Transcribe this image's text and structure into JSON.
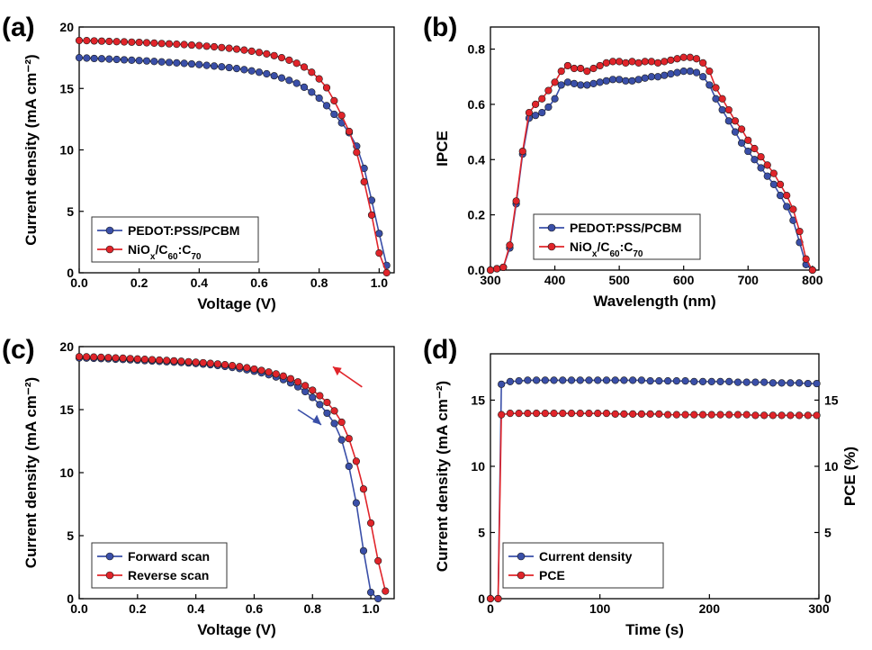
{
  "chart_data": [
    {
      "panel": "(a)",
      "type": "line",
      "xlabel": "Voltage (V)",
      "ylabel": "Current density (mA cm⁻²)",
      "xlim": [
        0,
        1.05
      ],
      "ylim": [
        0,
        20
      ],
      "xticks": [
        0.0,
        0.2,
        0.4,
        0.6,
        0.8,
        1.0
      ],
      "xtick_labels": [
        "0.0",
        "0.2",
        "0.4",
        "0.6",
        "0.8",
        "1.0"
      ],
      "yticks": [
        0,
        5,
        10,
        15,
        20
      ],
      "ytick_labels": [
        "0",
        "5",
        "10",
        "15",
        "20"
      ],
      "legend": {
        "position": "bottom-left",
        "entries": [
          "PEDOT:PSS/PCBM",
          "NiOx/C60:C70"
        ]
      },
      "series": [
        {
          "name": "PEDOT:PSS/PCBM",
          "color": "#3a4fa8",
          "x": [
            0.0,
            0.025,
            0.05,
            0.075,
            0.1,
            0.125,
            0.15,
            0.175,
            0.2,
            0.225,
            0.25,
            0.275,
            0.3,
            0.325,
            0.35,
            0.375,
            0.4,
            0.425,
            0.45,
            0.475,
            0.5,
            0.525,
            0.55,
            0.575,
            0.6,
            0.625,
            0.65,
            0.675,
            0.7,
            0.725,
            0.75,
            0.775,
            0.8,
            0.825,
            0.85,
            0.875,
            0.9,
            0.925,
            0.95,
            0.975,
            1.0,
            1.025
          ],
          "y": [
            17.5,
            17.47,
            17.44,
            17.42,
            17.39,
            17.36,
            17.33,
            17.3,
            17.27,
            17.24,
            17.2,
            17.16,
            17.12,
            17.08,
            17.04,
            16.99,
            16.94,
            16.88,
            16.82,
            16.76,
            16.7,
            16.62,
            16.53,
            16.43,
            16.32,
            16.19,
            16.03,
            15.85,
            15.66,
            15.42,
            15.1,
            14.7,
            14.21,
            13.6,
            12.9,
            12.2,
            11.4,
            10.3,
            8.5,
            5.9,
            3.2,
            0.6
          ]
        },
        {
          "name": "NiOx/C60:C70",
          "color": "#e0242a",
          "x": [
            0.0,
            0.025,
            0.05,
            0.075,
            0.1,
            0.125,
            0.15,
            0.175,
            0.2,
            0.225,
            0.25,
            0.275,
            0.3,
            0.325,
            0.35,
            0.375,
            0.4,
            0.425,
            0.45,
            0.475,
            0.5,
            0.525,
            0.55,
            0.575,
            0.6,
            0.625,
            0.65,
            0.675,
            0.7,
            0.725,
            0.75,
            0.775,
            0.8,
            0.825,
            0.85,
            0.875,
            0.9,
            0.925,
            0.95,
            0.975,
            1.0,
            1.025
          ],
          "y": [
            18.9,
            18.89,
            18.87,
            18.85,
            18.83,
            18.81,
            18.79,
            18.77,
            18.75,
            18.72,
            18.69,
            18.66,
            18.63,
            18.6,
            18.57,
            18.53,
            18.49,
            18.44,
            18.39,
            18.33,
            18.27,
            18.2,
            18.12,
            18.03,
            17.93,
            17.81,
            17.67,
            17.5,
            17.3,
            17.05,
            16.74,
            16.32,
            15.78,
            15.06,
            14.0,
            12.8,
            11.5,
            9.8,
            7.4,
            4.7,
            1.6,
            0.0
          ]
        }
      ]
    },
    {
      "panel": "(b)",
      "type": "line",
      "xlabel": "Wavelength (nm)",
      "ylabel": "IPCE",
      "xlim": [
        300,
        810
      ],
      "ylim": [
        0,
        0.88
      ],
      "xticks": [
        300,
        400,
        500,
        600,
        700,
        800
      ],
      "xtick_labels": [
        "300",
        "400",
        "500",
        "600",
        "700",
        "800"
      ],
      "yticks": [
        0.0,
        0.2,
        0.4,
        0.6,
        0.8
      ],
      "ytick_labels": [
        "0.0",
        "0.2",
        "0.4",
        "0.6",
        "0.8"
      ],
      "legend": {
        "position": "bottom-center",
        "entries": [
          "PEDOT:PSS/PCBM",
          "NiOx/C60:C70"
        ]
      },
      "series": [
        {
          "name": "PEDOT:PSS/PCBM",
          "color": "#3a4fa8",
          "x": [
            300,
            310,
            320,
            330,
            340,
            350,
            360,
            370,
            380,
            390,
            400,
            410,
            420,
            430,
            440,
            450,
            460,
            470,
            480,
            490,
            500,
            510,
            520,
            530,
            540,
            550,
            560,
            570,
            580,
            590,
            600,
            610,
            620,
            630,
            640,
            650,
            660,
            670,
            680,
            690,
            700,
            710,
            720,
            730,
            740,
            750,
            760,
            770,
            780,
            790,
            800
          ],
          "y": [
            0.0,
            0.005,
            0.01,
            0.08,
            0.24,
            0.42,
            0.55,
            0.56,
            0.57,
            0.59,
            0.62,
            0.67,
            0.68,
            0.675,
            0.67,
            0.67,
            0.675,
            0.68,
            0.685,
            0.69,
            0.69,
            0.685,
            0.685,
            0.69,
            0.695,
            0.7,
            0.7,
            0.705,
            0.71,
            0.715,
            0.72,
            0.72,
            0.715,
            0.7,
            0.67,
            0.62,
            0.58,
            0.54,
            0.5,
            0.46,
            0.43,
            0.4,
            0.37,
            0.34,
            0.31,
            0.27,
            0.23,
            0.18,
            0.1,
            0.02,
            0.0
          ]
        },
        {
          "name": "NiOx/C60:C70",
          "color": "#e0242a",
          "x": [
            300,
            310,
            320,
            330,
            340,
            350,
            360,
            370,
            380,
            390,
            400,
            410,
            420,
            430,
            440,
            450,
            460,
            470,
            480,
            490,
            500,
            510,
            520,
            530,
            540,
            550,
            560,
            570,
            580,
            590,
            600,
            610,
            620,
            630,
            640,
            650,
            660,
            670,
            680,
            690,
            700,
            710,
            720,
            730,
            740,
            750,
            760,
            770,
            780,
            790,
            800
          ],
          "y": [
            0.0,
            0.005,
            0.01,
            0.09,
            0.25,
            0.43,
            0.57,
            0.6,
            0.62,
            0.65,
            0.68,
            0.72,
            0.74,
            0.73,
            0.73,
            0.72,
            0.73,
            0.74,
            0.75,
            0.755,
            0.755,
            0.75,
            0.755,
            0.75,
            0.755,
            0.755,
            0.75,
            0.755,
            0.76,
            0.765,
            0.77,
            0.77,
            0.765,
            0.75,
            0.72,
            0.66,
            0.62,
            0.58,
            0.54,
            0.51,
            0.47,
            0.44,
            0.41,
            0.38,
            0.35,
            0.31,
            0.27,
            0.22,
            0.14,
            0.04,
            0.0
          ]
        }
      ]
    },
    {
      "panel": "(c)",
      "type": "line",
      "xlabel": "Voltage (V)",
      "ylabel": "Current density (mA cm⁻²)",
      "xlim": [
        0,
        1.08
      ],
      "ylim": [
        0,
        20
      ],
      "xticks": [
        0.0,
        0.2,
        0.4,
        0.6,
        0.8,
        1.0
      ],
      "xtick_labels": [
        "0.0",
        "0.2",
        "0.4",
        "0.6",
        "0.8",
        "1.0"
      ],
      "yticks": [
        0,
        5,
        10,
        15,
        20
      ],
      "ytick_labels": [
        "0",
        "5",
        "10",
        "15",
        "20"
      ],
      "legend": {
        "position": "bottom-left",
        "entries": [
          "Forward scan",
          "Reverse scan"
        ]
      },
      "annotations": [
        "red arrow pointing up-left near Reverse scan curve",
        "blue arrow pointing down-right near Forward scan curve"
      ],
      "series": [
        {
          "name": "Forward scan",
          "color": "#3a4fa8",
          "x": [
            0.0,
            0.025,
            0.05,
            0.075,
            0.1,
            0.125,
            0.15,
            0.175,
            0.2,
            0.225,
            0.25,
            0.275,
            0.3,
            0.325,
            0.35,
            0.375,
            0.4,
            0.425,
            0.45,
            0.475,
            0.5,
            0.525,
            0.55,
            0.575,
            0.6,
            0.625,
            0.65,
            0.675,
            0.7,
            0.725,
            0.75,
            0.775,
            0.8,
            0.825,
            0.85,
            0.875,
            0.9,
            0.925,
            0.95,
            0.975,
            1.0,
            1.025
          ],
          "y": [
            19.1,
            19.09,
            19.07,
            19.05,
            19.03,
            19.0,
            18.98,
            18.95,
            18.92,
            18.89,
            18.86,
            18.83,
            18.8,
            18.77,
            18.74,
            18.7,
            18.66,
            18.61,
            18.56,
            18.5,
            18.43,
            18.35,
            18.26,
            18.16,
            18.05,
            17.92,
            17.77,
            17.59,
            17.38,
            17.12,
            16.81,
            16.43,
            15.97,
            15.4,
            14.72,
            13.9,
            12.6,
            10.5,
            7.6,
            3.8,
            0.5,
            0.0
          ]
        },
        {
          "name": "Reverse scan",
          "color": "#e0242a",
          "x": [
            0.0,
            0.025,
            0.05,
            0.075,
            0.1,
            0.125,
            0.15,
            0.175,
            0.2,
            0.225,
            0.25,
            0.275,
            0.3,
            0.325,
            0.35,
            0.375,
            0.4,
            0.425,
            0.45,
            0.475,
            0.5,
            0.525,
            0.55,
            0.575,
            0.6,
            0.625,
            0.65,
            0.675,
            0.7,
            0.725,
            0.75,
            0.775,
            0.8,
            0.825,
            0.85,
            0.875,
            0.9,
            0.925,
            0.95,
            0.975,
            1.0,
            1.025,
            1.05
          ],
          "y": [
            19.2,
            19.19,
            19.17,
            19.15,
            19.13,
            19.1,
            19.08,
            19.05,
            19.02,
            18.99,
            18.96,
            18.93,
            18.9,
            18.87,
            18.84,
            18.8,
            18.76,
            18.72,
            18.67,
            18.62,
            18.56,
            18.49,
            18.41,
            18.32,
            18.22,
            18.11,
            17.98,
            17.83,
            17.66,
            17.45,
            17.2,
            16.9,
            16.54,
            16.1,
            15.57,
            14.9,
            14.0,
            12.7,
            10.9,
            8.7,
            6.0,
            3.0,
            0.6
          ]
        }
      ]
    },
    {
      "panel": "(d)",
      "type": "line",
      "xlabel": "Time (s)",
      "ylabel": "Current density (mA cm⁻²)",
      "y2label": "PCE (%)",
      "xlim": [
        0,
        300
      ],
      "ylim": [
        0,
        18.5
      ],
      "y2lim": [
        0,
        18.5
      ],
      "xticks": [
        0,
        100,
        200,
        300
      ],
      "xtick_labels": [
        "0",
        "100",
        "200",
        "300"
      ],
      "yticks": [
        0,
        5,
        10,
        15
      ],
      "ytick_labels": [
        "0",
        "5",
        "10",
        "15"
      ],
      "y2ticks": [
        0,
        5,
        10,
        15
      ],
      "y2tick_labels": [
        "0",
        "5",
        "10",
        "15"
      ],
      "legend": {
        "position": "bottom-left",
        "entries": [
          "Current density",
          "PCE"
        ]
      },
      "series": [
        {
          "name": "Current density",
          "color": "#3a4fa8",
          "x": [
            0,
            7,
            10,
            18,
            26,
            34,
            42,
            50,
            58,
            66,
            74,
            82,
            90,
            98,
            106,
            114,
            122,
            130,
            138,
            146,
            154,
            162,
            170,
            178,
            186,
            194,
            202,
            210,
            218,
            226,
            234,
            242,
            250,
            258,
            266,
            274,
            282,
            290,
            298
          ],
          "y": [
            0,
            0,
            16.2,
            16.4,
            16.45,
            16.5,
            16.5,
            16.5,
            16.5,
            16.5,
            16.5,
            16.5,
            16.5,
            16.5,
            16.5,
            16.5,
            16.5,
            16.5,
            16.5,
            16.45,
            16.45,
            16.45,
            16.45,
            16.45,
            16.4,
            16.4,
            16.4,
            16.4,
            16.4,
            16.35,
            16.35,
            16.35,
            16.35,
            16.3,
            16.3,
            16.3,
            16.3,
            16.25,
            16.25
          ]
        },
        {
          "name": "PCE",
          "color": "#e0242a",
          "x": [
            0,
            7,
            10,
            18,
            26,
            34,
            42,
            50,
            58,
            66,
            74,
            82,
            90,
            98,
            106,
            114,
            122,
            130,
            138,
            146,
            154,
            162,
            170,
            178,
            186,
            194,
            202,
            210,
            218,
            226,
            234,
            242,
            250,
            258,
            266,
            274,
            282,
            290,
            298
          ],
          "y": [
            0,
            0,
            13.9,
            14.0,
            14.0,
            14.0,
            14.0,
            14.0,
            14.0,
            14.0,
            14.0,
            14.0,
            14.0,
            14.0,
            14.0,
            13.95,
            13.95,
            13.95,
            13.95,
            13.95,
            13.95,
            13.9,
            13.9,
            13.9,
            13.9,
            13.9,
            13.9,
            13.9,
            13.9,
            13.9,
            13.9,
            13.85,
            13.85,
            13.85,
            13.85,
            13.85,
            13.85,
            13.85,
            13.85
          ]
        }
      ]
    }
  ]
}
